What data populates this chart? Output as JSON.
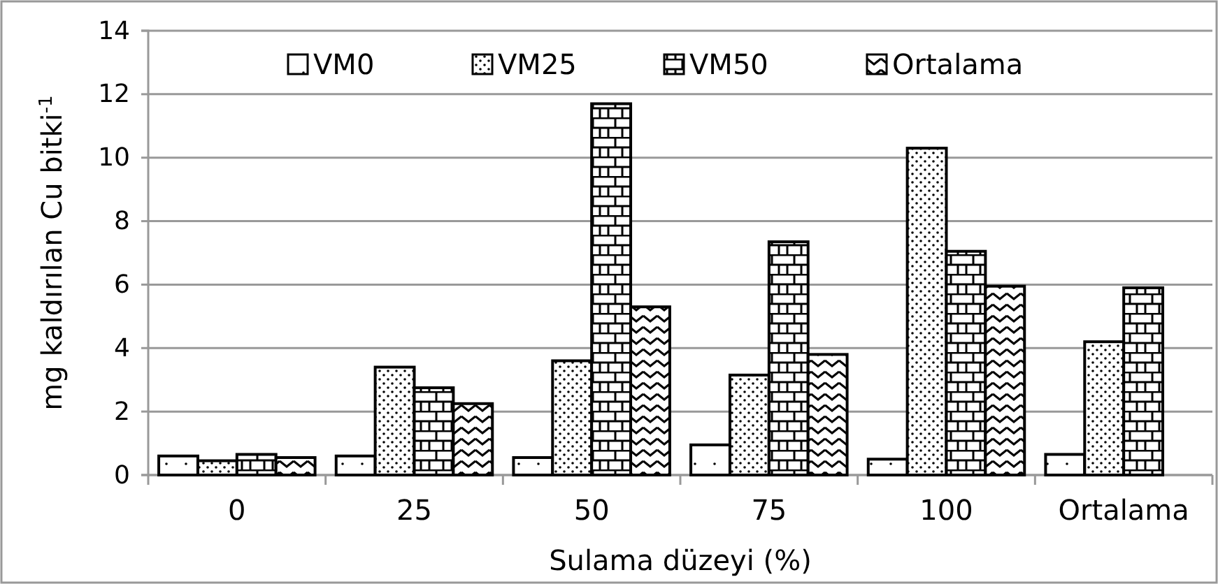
{
  "chart_data": {
    "type": "bar",
    "xlabel": "Sulama düzeyi (%)",
    "ylabel": "mg kaldırılan Cu bitki$^{-1}$",
    "categories": [
      "0",
      "25",
      "50",
      "75",
      "100",
      "Ortalama"
    ],
    "series": [
      {
        "name": "VM0",
        "color": "#000000",
        "values": [
          0.6,
          0.6,
          0.55,
          0.95,
          0.5,
          0.65
        ]
      },
      {
        "name": "VM25",
        "color": "#000000",
        "values": [
          0.45,
          3.4,
          3.6,
          3.15,
          10.3,
          4.2
        ]
      },
      {
        "name": "VM50",
        "color": "#000000",
        "values": [
          0.65,
          2.75,
          11.7,
          7.35,
          7.05,
          5.9
        ]
      },
      {
        "name": "Ortalama",
        "color": "#000000",
        "values": [
          0.55,
          2.25,
          5.3,
          3.8,
          5.95,
          null
        ]
      }
    ],
    "ylim": [
      0,
      14
    ],
    "yticks": [
      0,
      2,
      4,
      6,
      8,
      10,
      12,
      14
    ],
    "grid": "y",
    "legend": "top"
  }
}
